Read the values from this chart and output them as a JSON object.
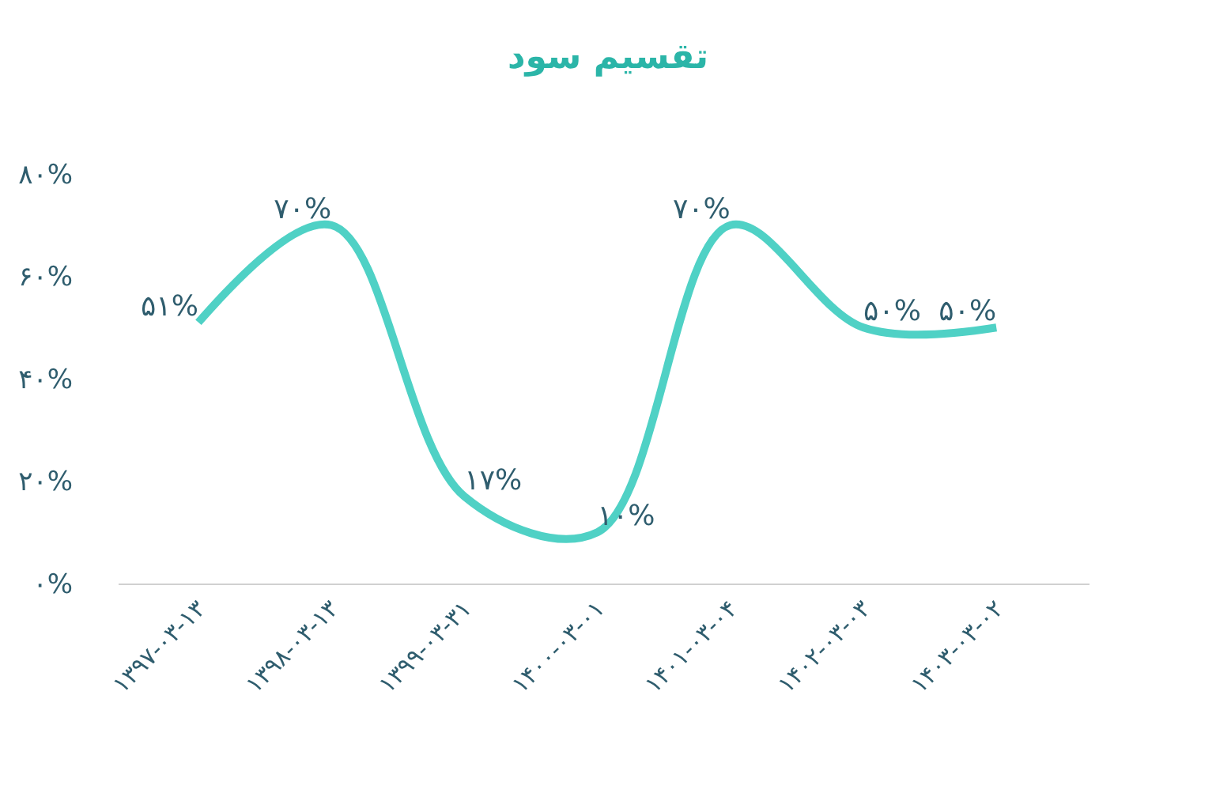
{
  "chart_data": {
    "type": "line",
    "title": "تقسیم سود",
    "categories": [
      "۱۳۹۷-۰۳-۱۳",
      "۱۳۹۸-۰۳-۱۳",
      "۱۳۹۹-۰۳-۳۱",
      "۱۴۰۰-۰۳-۰۱",
      "۱۴۰۱-۰۳-۰۴",
      "۱۴۰۲-۰۳-۰۳",
      "۱۴۰۳-۰۳-۰۲"
    ],
    "series": [
      {
        "color": "#4fd1c5",
        "values": [
          51,
          70,
          17,
          10,
          70,
          50,
          50
        ],
        "value_labels": [
          "۵۱%",
          "۷۰%",
          "۱۷%",
          "۱۰%",
          "۷۰%",
          "۵۰%",
          "۵۰%"
        ]
      }
    ],
    "ylim": [
      0,
      80
    ],
    "yticks": [
      {
        "value": 0,
        "label": "۰%"
      },
      {
        "value": 20,
        "label": "۲۰%"
      },
      {
        "value": 40,
        "label": "۴۰%"
      },
      {
        "value": 60,
        "label": "۶۰%"
      },
      {
        "value": 80,
        "label": "۸۰%"
      }
    ],
    "marker": "none",
    "line_style": "solid"
  }
}
